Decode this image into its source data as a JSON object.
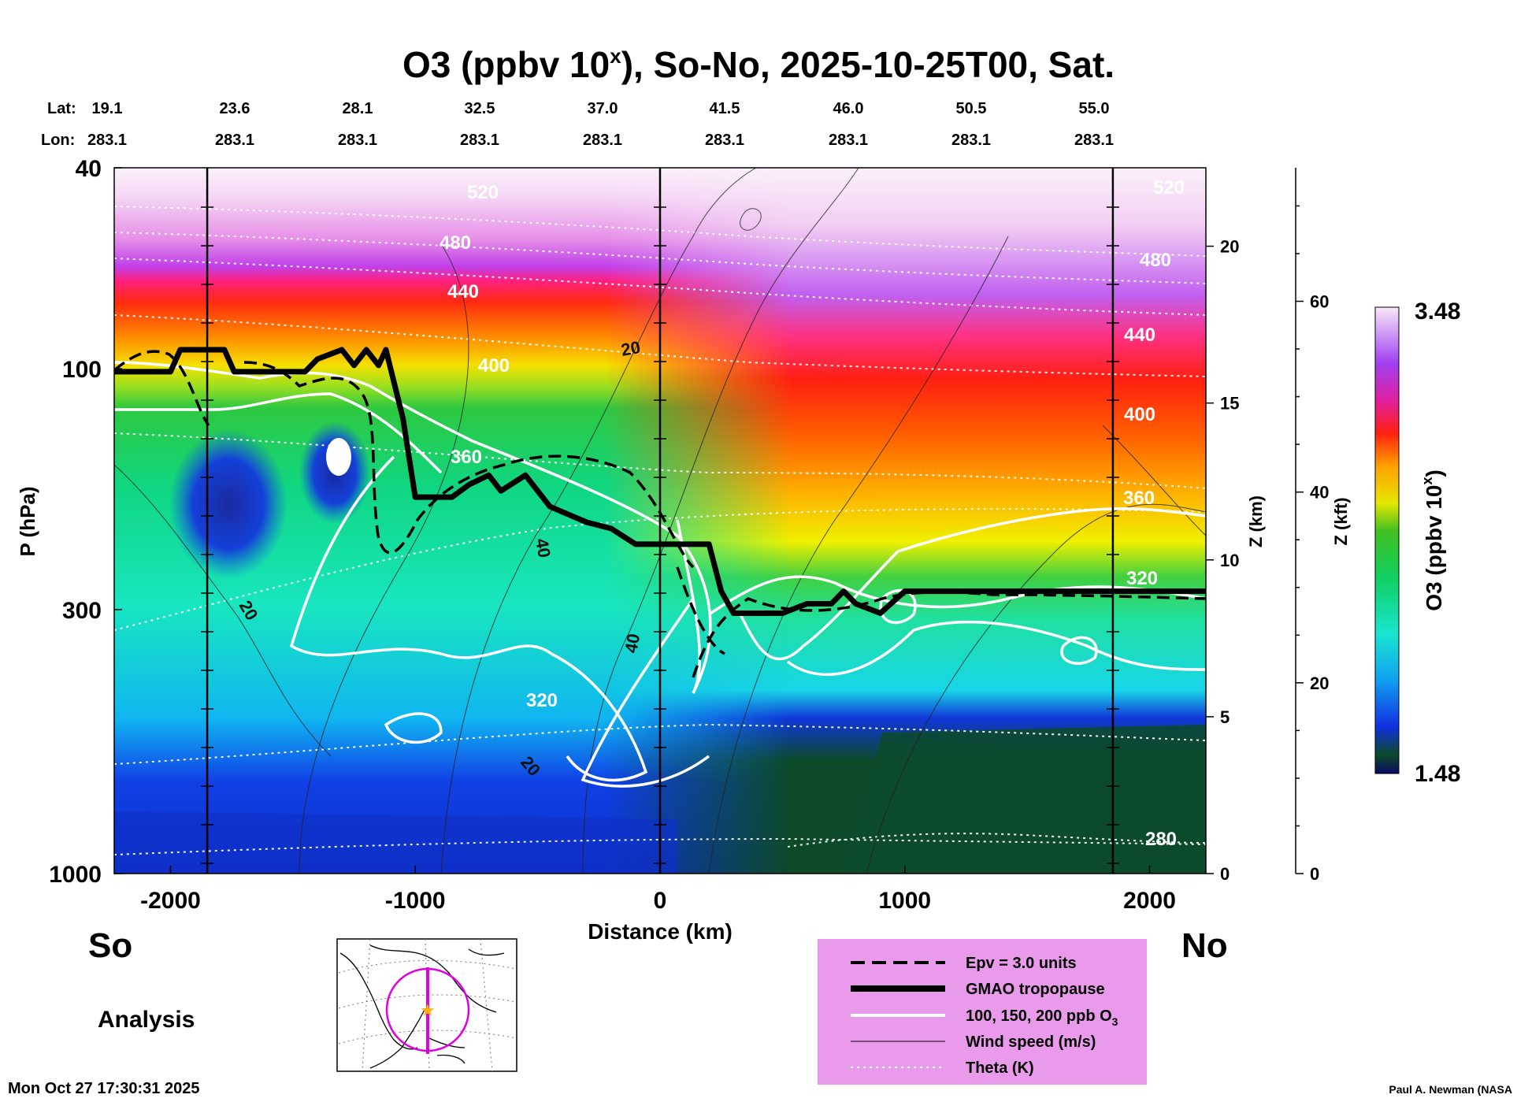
{
  "header": {
    "title_main": "O3 (ppbv 10",
    "title_sup": "x",
    "title_rest": "), So-No, 2025-10-25T00, Sat."
  },
  "coords": {
    "lat_label": "Lat:",
    "lon_label": "Lon:",
    "lats": [
      "19.1",
      "23.6",
      "28.1",
      "32.5",
      "37.0",
      "41.5",
      "46.0",
      "50.5",
      "55.0"
    ],
    "lons": [
      "283.1",
      "283.1",
      "283.1",
      "283.1",
      "283.1",
      "283.1",
      "283.1",
      "283.1",
      "283.1"
    ]
  },
  "chart_data": {
    "type": "heatmap",
    "title": "O3 (ppbv 10^x), So-No, 2025-10-25T00, Sat.",
    "xlabel": "Distance (km)",
    "ylabel": "P (hPa)",
    "xlim": [
      -2230,
      2230
    ],
    "ylim": [
      1000,
      40
    ],
    "x_ticks": [
      -2000,
      -1000,
      0,
      1000,
      2000
    ],
    "x_tick_labels": [
      "-2000",
      "-1000",
      "0",
      "1000",
      "2000"
    ],
    "p_ticks": [
      40,
      100,
      300,
      1000
    ],
    "p_tick_labels": [
      "40",
      "100",
      "300",
      "1000"
    ],
    "z_km_label": "Z (km)",
    "z_km_ticks": [
      0,
      5,
      10,
      15,
      20
    ],
    "z_km_tick_labels": [
      "0",
      "5",
      "10",
      "15",
      "20"
    ],
    "z_kft_label": "Z (kft)",
    "z_kft_ticks": [
      0,
      20,
      40,
      60
    ],
    "z_kft_tick_labels": [
      "0",
      "20",
      "40",
      "60"
    ],
    "colorbar": {
      "label": "O3 (ppbv 10",
      "label_sup": "x",
      "label_end": ")",
      "min": 1.48,
      "max": 3.48,
      "min_label": "1.48",
      "max_label": "3.48"
    },
    "theta_labels": [
      "520",
      "480",
      "440",
      "400",
      "360",
      "320",
      "280"
    ],
    "wind_labels": [
      "20",
      "40"
    ],
    "tropopause_km": [
      [
        -2230,
        16.0
      ],
      [
        -2000,
        16.0
      ],
      [
        -1960,
        16.7
      ],
      [
        -1780,
        16.7
      ],
      [
        -1740,
        16.0
      ],
      [
        -1450,
        16.0
      ],
      [
        -1400,
        16.4
      ],
      [
        -1300,
        16.7
      ],
      [
        -1250,
        16.2
      ],
      [
        -1200,
        16.7
      ],
      [
        -1150,
        16.2
      ],
      [
        -1120,
        16.7
      ],
      [
        -1050,
        14.5
      ],
      [
        -1000,
        12.0
      ],
      [
        -850,
        12.0
      ],
      [
        -780,
        12.4
      ],
      [
        -700,
        12.7
      ],
      [
        -650,
        12.2
      ],
      [
        -550,
        12.7
      ],
      [
        -500,
        12.2
      ],
      [
        -450,
        11.7
      ],
      [
        -300,
        11.2
      ],
      [
        -200,
        11.0
      ],
      [
        -100,
        10.5
      ],
      [
        0,
        10.5
      ],
      [
        200,
        10.5
      ],
      [
        250,
        9.0
      ],
      [
        300,
        8.3
      ],
      [
        500,
        8.3
      ],
      [
        600,
        8.6
      ],
      [
        700,
        8.6
      ],
      [
        750,
        9.0
      ],
      [
        800,
        8.6
      ],
      [
        900,
        8.3
      ],
      [
        1000,
        9.0
      ],
      [
        2230,
        9.0
      ]
    ],
    "regions": {
      "left_label": "So",
      "right_label": "No",
      "analysis_label": "Analysis"
    }
  },
  "legend": {
    "items": [
      {
        "label": "Epv = 3.0 units",
        "style": "dash"
      },
      {
        "label": "GMAO tropopause",
        "style": "thick"
      },
      {
        "label": "100, 150, 200 ppb O",
        "sub": "3",
        "style": "white"
      },
      {
        "label": "Wind speed (m/s)",
        "style": "thin"
      },
      {
        "label": "Theta (K)",
        "style": "dotted"
      }
    ],
    "bg_color": "#ea9aea"
  },
  "footer": {
    "timestamp": "Mon Oct 27 17:30:31 2025",
    "credit": "Paul A. Newman (NASA"
  },
  "colors": {
    "stratosphere_top": "#f8e8f8",
    "magenta": "#d040d8",
    "red": "#ff1a1a",
    "orange": "#ff8c00",
    "yellow": "#f2e600",
    "green": "#2ecc40",
    "cyan": "#18e6c0",
    "blue": "#1030e0",
    "dark_green": "#0c4a2a",
    "map_track": "#e000e0",
    "map_star": "#ffb000"
  }
}
